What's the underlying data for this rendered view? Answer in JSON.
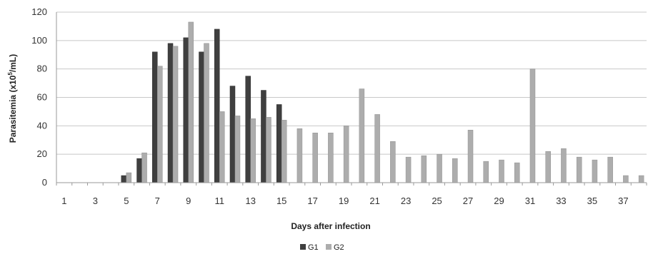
{
  "chart_data": {
    "type": "bar",
    "title": "",
    "xlabel": "Days after infection",
    "ylabel_main": "Parasitemia (x10",
    "ylabel_sup": "5",
    "ylabel_end": "/mL)",
    "ylim": [
      0,
      120
    ],
    "yticks": [
      0,
      20,
      40,
      60,
      80,
      100,
      120
    ],
    "grid": true,
    "legend_position": "bottom-center",
    "categories": [
      1,
      2,
      3,
      4,
      5,
      6,
      7,
      8,
      9,
      10,
      11,
      12,
      13,
      14,
      15,
      16,
      17,
      18,
      19,
      20,
      21,
      22,
      23,
      24,
      25,
      26,
      27,
      28,
      29,
      30,
      31,
      32,
      33,
      34,
      35,
      36,
      37,
      38
    ],
    "xtick_labels": [
      "1",
      "",
      "3",
      "",
      "5",
      "",
      "7",
      "",
      "9",
      "",
      "11",
      "",
      "13",
      "",
      "15",
      "",
      "17",
      "",
      "19",
      "",
      "21",
      "",
      "23",
      "",
      "25",
      "",
      "27",
      "",
      "29",
      "",
      "31",
      "",
      "33",
      "",
      "35",
      "",
      "37",
      ""
    ],
    "series": [
      {
        "name": "G1",
        "color": "#3f3f3f",
        "values": [
          0,
          0,
          0,
          0,
          5,
          17,
          92,
          98,
          102,
          92,
          108,
          68,
          75,
          65,
          55,
          null,
          null,
          null,
          null,
          null,
          null,
          null,
          null,
          null,
          null,
          null,
          null,
          null,
          null,
          null,
          null,
          null,
          null,
          null,
          null,
          null,
          null,
          null
        ]
      },
      {
        "name": "G2",
        "color": "#adadad",
        "values": [
          0,
          0,
          0,
          0,
          7,
          21,
          82,
          96,
          113,
          98,
          50,
          47,
          45,
          46,
          44,
          38,
          35,
          35,
          40,
          66,
          48,
          29,
          18,
          19,
          20,
          17,
          37,
          15,
          16,
          14,
          80,
          22,
          24,
          18,
          16,
          18,
          5,
          5
        ]
      }
    ]
  }
}
